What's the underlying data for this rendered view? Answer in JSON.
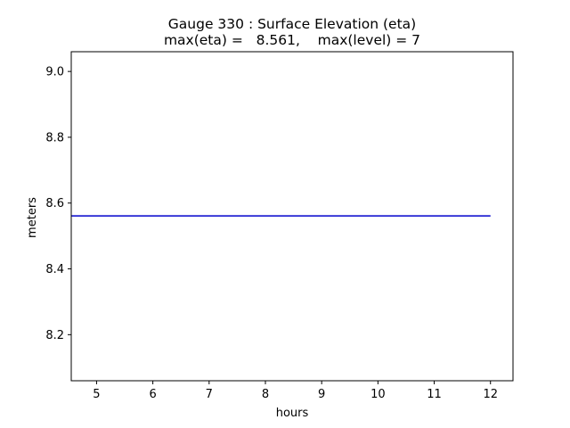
{
  "chart_data": {
    "type": "line",
    "title_line1": "Gauge 330 : Surface Elevation (eta)",
    "title_line2": "max(eta) =   8.561,    max(level) = 7",
    "xlabel": "hours",
    "ylabel": "meters",
    "xlim": [
      4.55,
      12.4
    ],
    "ylim": [
      8.06,
      9.06
    ],
    "xticks": [
      5,
      6,
      7,
      8,
      9,
      10,
      11,
      12
    ],
    "yticks": [
      8.2,
      8.4,
      8.6,
      8.8,
      9.0
    ],
    "ytick_labels": [
      "8.2",
      "8.4",
      "8.6",
      "8.8",
      "9.0"
    ],
    "series": [
      {
        "color": "#0000cc",
        "x": [
          4.55,
          12.0
        ],
        "y": [
          8.561,
          8.561
        ]
      }
    ]
  }
}
